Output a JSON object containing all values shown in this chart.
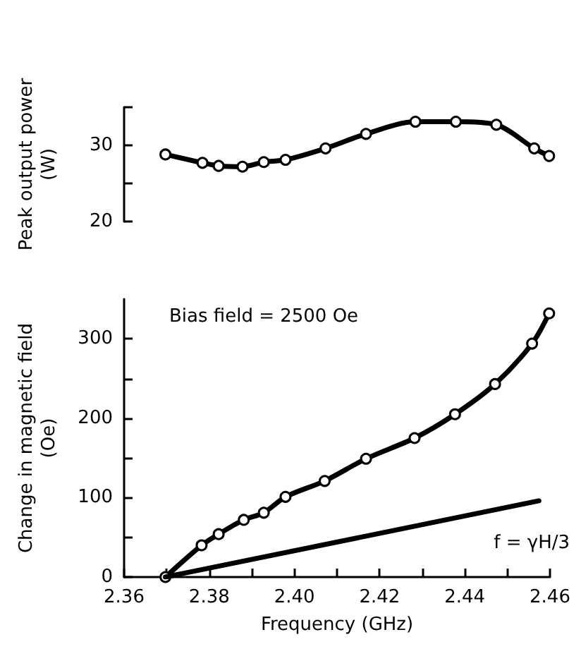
{
  "chart_data": [
    {
      "type": "line",
      "ylabel": "Peak output power (W)",
      "tick_labels": "y",
      "marker": "circle",
      "line_style": "solid",
      "grid": false,
      "legend": false,
      "xlim": [
        2.36,
        2.46
      ],
      "ylim": [
        20,
        35
      ],
      "yticks": [
        20,
        {
          "value": 25,
          "label": null
        },
        30,
        {
          "value": 35,
          "label": null
        }
      ],
      "series": [
        {
          "color": "#000000",
          "x": [
            2.3697,
            2.3784,
            2.3822,
            2.3878,
            2.3928,
            2.3979,
            2.4073,
            2.4168,
            2.4284,
            2.4379,
            2.4474,
            2.4563,
            2.4598
          ],
          "values": [
            28.8,
            27.7,
            27.3,
            27.2,
            27.8,
            28.1,
            29.6,
            31.5,
            33.1,
            33.1,
            32.7,
            29.6,
            28.6
          ]
        }
      ]
    },
    {
      "type": "line",
      "xlabel": "Frequency (GHz)",
      "ylabel": "Change in magnetic field (Oe)",
      "grid": false,
      "legend": false,
      "line_style": "solid",
      "annotations": [
        "Bias field = 2500 Oe"
      ],
      "xlim": [
        2.36,
        2.46
      ],
      "xticks": [
        2.36,
        {
          "value": 2.37,
          "label": null
        },
        2.38,
        {
          "value": 2.39,
          "label": null
        },
        {
          "value": 2.4,
          "label": "2.40"
        },
        {
          "value": 2.41,
          "label": null
        },
        2.42,
        {
          "value": 2.43,
          "label": null
        },
        2.44,
        {
          "value": 2.45,
          "label": null
        },
        2.46
      ],
      "ylim": [
        0,
        350
      ],
      "yticks": [
        0,
        {
          "value": 50,
          "label": null
        },
        100,
        {
          "value": 150,
          "label": null
        },
        200,
        {
          "value": 250,
          "label": null
        },
        300
      ],
      "series": [
        {
          "color": "#000000",
          "marker": "circle",
          "x": [
            2.3697,
            2.3782,
            2.3822,
            2.3881,
            2.3928,
            2.3979,
            2.4071,
            2.4168,
            2.4282,
            2.4377,
            2.4471,
            2.4558,
            2.4598
          ],
          "values": [
            0,
            40,
            54,
            72,
            81,
            101,
            121,
            149,
            175,
            205,
            243,
            294,
            332
          ]
        },
        {
          "color": "#000000",
          "marker": "none",
          "name": "f = γH/3",
          "x": [
            2.3697,
            2.4574
          ],
          "values": [
            0,
            96
          ]
        }
      ]
    }
  ]
}
